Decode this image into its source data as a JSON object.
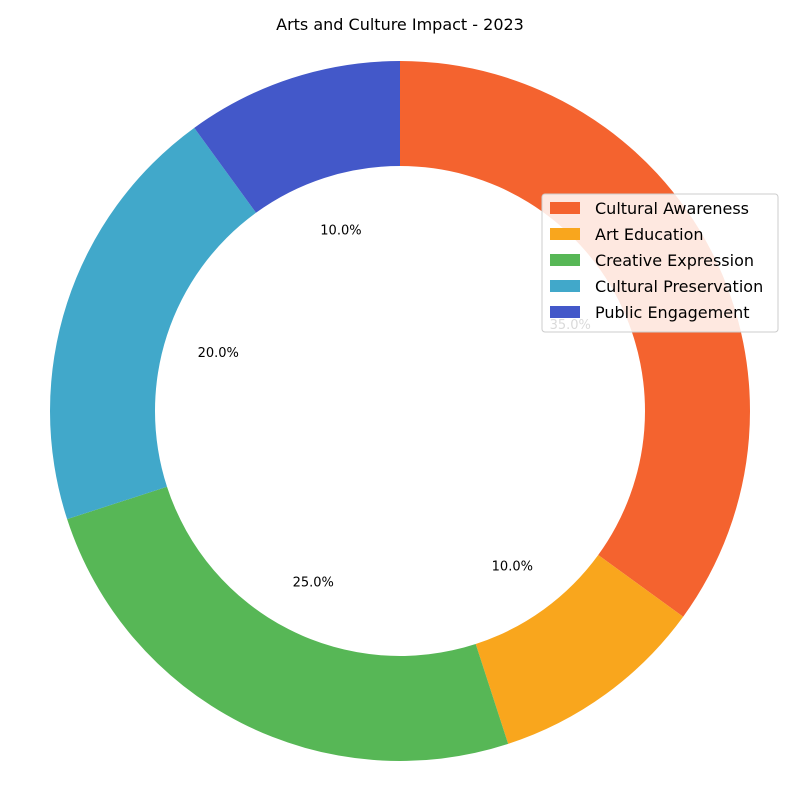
{
  "chart_data": {
    "type": "pie",
    "style": "donut",
    "title": "Arts and Culture Impact - 2023",
    "legend_position": "right",
    "slices": [
      {
        "label": "Cultural Awareness",
        "value": 35.0,
        "pct_label": "35.0%",
        "color": "#f4632f"
      },
      {
        "label": "Art Education",
        "value": 10.0,
        "pct_label": "10.0%",
        "color": "#f9a61d"
      },
      {
        "label": "Creative Expression",
        "value": 25.0,
        "pct_label": "25.0%",
        "color": "#57b756"
      },
      {
        "label": "Cultural Preservation",
        "value": 20.0,
        "pct_label": "20.0%",
        "color": "#41a8ca"
      },
      {
        "label": "Public Engagement",
        "value": 10.0,
        "pct_label": "10.0%",
        "color": "#4358c9"
      }
    ]
  }
}
